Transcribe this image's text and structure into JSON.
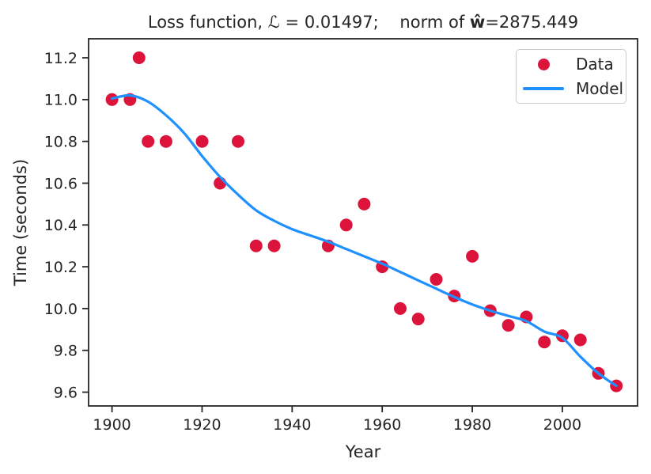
{
  "chart_data": {
    "type": "scatter",
    "title": {
      "before_w": "Loss function, ℒ = 0.01497;    norm of ",
      "w_hat": "ŵ",
      "after_w": "=2875.449"
    },
    "xlabel": "Year",
    "ylabel": "Time (seconds)",
    "xlim": [
      1894.8,
      2016.7
    ],
    "ylim": [
      9.534,
      11.291
    ],
    "x_ticks": [
      1900,
      1920,
      1940,
      1960,
      1980,
      2000
    ],
    "y_ticks": [
      9.6,
      9.8,
      10.0,
      10.2,
      10.4,
      10.6,
      10.8,
      11.0,
      11.2
    ],
    "grid": false,
    "colors": {
      "data_points": "#dc143c",
      "model_line": "#1e90ff",
      "axis_and_text": "#262626",
      "legend_border": "#cccccc"
    },
    "legend": {
      "position": "upper right",
      "items": [
        {
          "label": "Data",
          "swatch": "marker",
          "color": "#dc143c"
        },
        {
          "label": "Model",
          "swatch": "line",
          "color": "#1e90ff"
        }
      ]
    },
    "series": [
      {
        "name": "Data",
        "type": "scatter",
        "color": "#dc143c",
        "x": [
          1900,
          1904,
          1906,
          1908,
          1912,
          1920,
          1924,
          1928,
          1932,
          1936,
          1948,
          1952,
          1956,
          1960,
          1964,
          1968,
          1972,
          1976,
          1980,
          1984,
          1988,
          1992,
          1996,
          2000,
          2004,
          2008,
          2012
        ],
        "y": [
          11.0,
          11.0,
          11.2,
          10.8,
          10.8,
          10.8,
          10.6,
          10.8,
          10.3,
          10.3,
          10.3,
          10.4,
          10.5,
          10.2,
          10.0,
          9.95,
          10.14,
          10.06,
          10.25,
          9.99,
          9.92,
          9.96,
          9.84,
          9.87,
          9.85,
          9.69,
          9.63
        ]
      },
      {
        "name": "Model",
        "type": "line",
        "color": "#1e90ff",
        "x": [
          1900,
          1904,
          1908,
          1912,
          1916,
          1920,
          1924,
          1928,
          1932,
          1936,
          1940,
          1944,
          1948,
          1952,
          1956,
          1960,
          1964,
          1968,
          1972,
          1976,
          1980,
          1984,
          1988,
          1992,
          1996,
          2000,
          2004,
          2008,
          2012
        ],
        "y": [
          11.005,
          11.02,
          10.99,
          10.925,
          10.84,
          10.73,
          10.63,
          10.545,
          10.47,
          10.42,
          10.38,
          10.35,
          10.32,
          10.285,
          10.25,
          10.215,
          10.175,
          10.135,
          10.095,
          10.055,
          10.02,
          9.99,
          9.965,
          9.94,
          9.89,
          9.86,
          9.77,
          9.69,
          9.63
        ]
      }
    ]
  }
}
